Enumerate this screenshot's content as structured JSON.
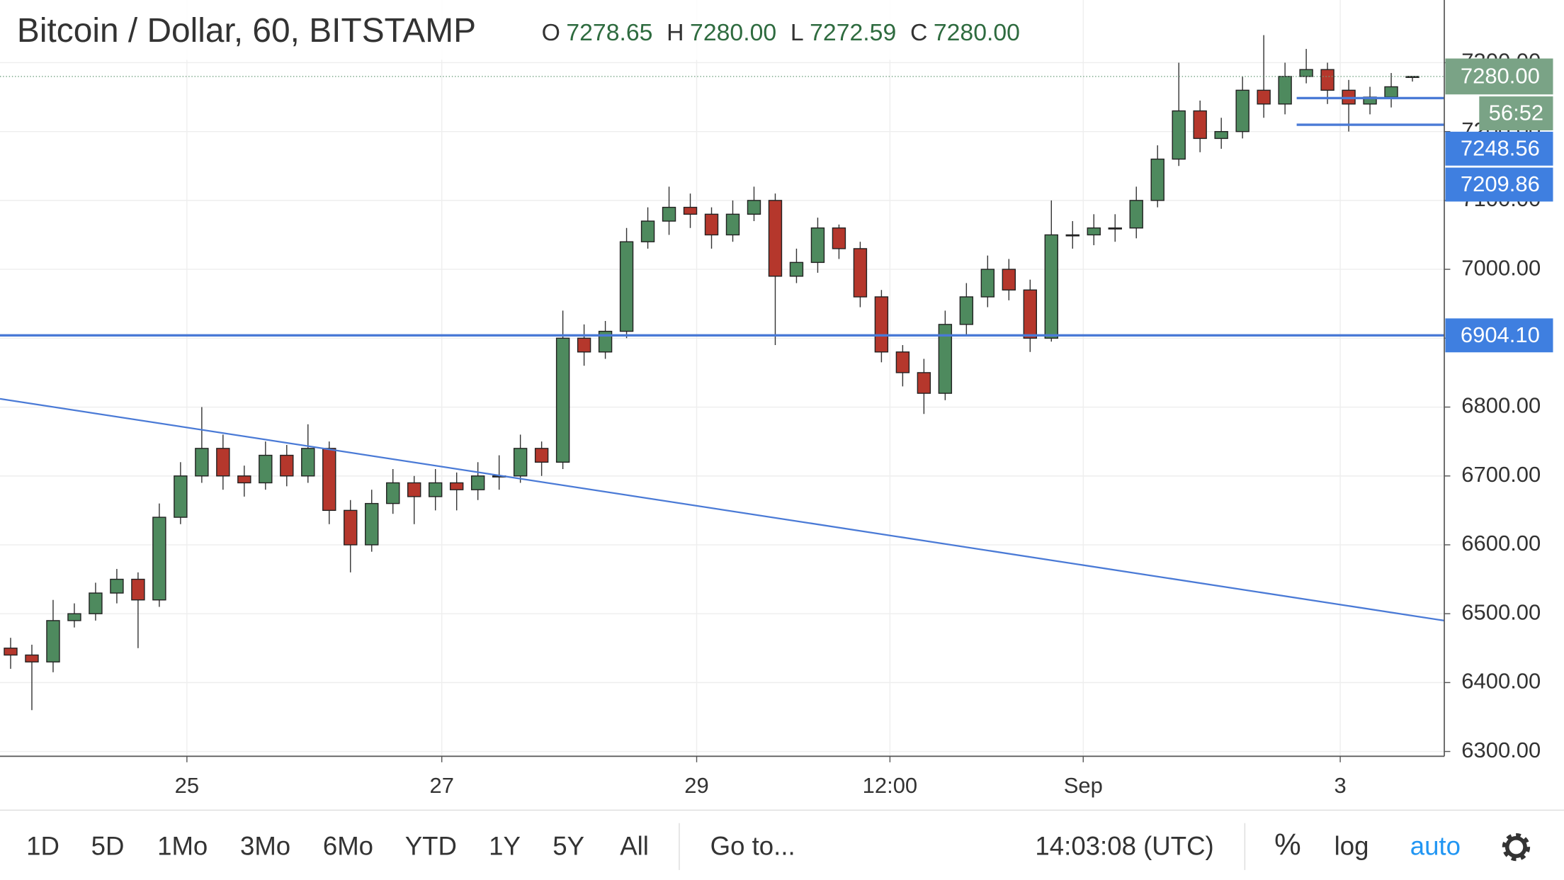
{
  "chart_data": {
    "type": "candlestick",
    "title": "Bitcoin / Dollar, 60, BITSTAMP",
    "legend_values": {
      "names": [
        "O",
        "H",
        "L",
        "C"
      ],
      "values": [
        7278.65,
        7280,
        7272.59,
        7280
      ],
      "value_labels": [
        "7278.65",
        "7280.00",
        "7272.59",
        "7280.00"
      ]
    },
    "open": [
      6450,
      6440,
      6430,
      6490,
      6500,
      6530,
      6550,
      6520,
      6640,
      6700,
      6740,
      6700,
      6690,
      6730,
      6700,
      6740,
      6650,
      6600,
      6660,
      6690,
      6670,
      6690,
      6680,
      6700,
      6700,
      6740,
      6720,
      6900,
      6880,
      6910,
      7040,
      7070,
      7090,
      7080,
      7050,
      7080,
      7100,
      6990,
      7010,
      7060,
      7030,
      6960,
      6880,
      6850,
      6820,
      6920,
      6960,
      7000,
      6970,
      6900,
      7050,
      7050,
      7060,
      7060,
      7100,
      7160,
      7230,
      7190,
      7200,
      7260,
      7240,
      7280,
      7290,
      7260,
      7240,
      7250,
      7278.65
    ],
    "high": [
      6465,
      6455,
      6520,
      6515,
      6545,
      6565,
      6560,
      6660,
      6720,
      6800,
      6760,
      6715,
      6750,
      6745,
      6775,
      6750,
      6665,
      6680,
      6710,
      6700,
      6710,
      6705,
      6720,
      6730,
      6760,
      6750,
      6940,
      6920,
      6925,
      7060,
      7090,
      7120,
      7110,
      7090,
      7100,
      7120,
      7110,
      7030,
      7075,
      7065,
      7040,
      6970,
      6890,
      6870,
      6940,
      6980,
      7020,
      7015,
      6985,
      7100,
      7070,
      7080,
      7080,
      7120,
      7180,
      7300,
      7245,
      7220,
      7280,
      7340,
      7300,
      7320,
      7300,
      7275,
      7265,
      7285,
      7280
    ],
    "low": [
      6420,
      6360,
      6415,
      6480,
      6490,
      6515,
      6450,
      6510,
      6630,
      6690,
      6680,
      6670,
      6680,
      6685,
      6690,
      6630,
      6560,
      6590,
      6645,
      6630,
      6650,
      6650,
      6665,
      6680,
      6690,
      6700,
      6710,
      6860,
      6870,
      6900,
      7030,
      7050,
      7060,
      7030,
      7040,
      7070,
      6890,
      6980,
      6995,
      7015,
      6945,
      6865,
      6830,
      6790,
      6810,
      6905,
      6945,
      6955,
      6880,
      6895,
      7030,
      7035,
      7040,
      7045,
      7090,
      7150,
      7170,
      7175,
      7190,
      7220,
      7225,
      7270,
      7240,
      7200,
      7225,
      7235,
      7272.59
    ],
    "close": [
      6440,
      6430,
      6490,
      6500,
      6530,
      6550,
      6520,
      6640,
      6700,
      6740,
      6700,
      6690,
      6730,
      6700,
      6740,
      6650,
      6600,
      6660,
      6690,
      6670,
      6690,
      6680,
      6700,
      6700,
      6740,
      6720,
      6900,
      6880,
      6910,
      7040,
      7070,
      7090,
      7080,
      7050,
      7080,
      7100,
      6990,
      7010,
      7060,
      7030,
      6960,
      6880,
      6850,
      6820,
      6920,
      6960,
      7000,
      6970,
      6900,
      7050,
      7050,
      7060,
      7060,
      7100,
      7160,
      7230,
      7190,
      7200,
      7260,
      7240,
      7280,
      7290,
      7260,
      7240,
      7250,
      7265,
      7280
    ],
    "up_color": "#4e8a5e",
    "down_color": "#b5372c",
    "xlim": [
      0,
      68
    ],
    "xticks": [
      {
        "value": 8.8,
        "label": "25"
      },
      {
        "value": 20.8,
        "label": "27"
      },
      {
        "value": 32.8,
        "label": "29"
      },
      {
        "value": 41.9,
        "label": "12:00"
      },
      {
        "value": 51,
        "label": "Sep"
      },
      {
        "value": 63.1,
        "label": "3"
      }
    ],
    "ylim": [
      6293,
      7391
    ],
    "yticks": [
      {
        "value": 6300,
        "label": "6300.00"
      },
      {
        "value": 6400,
        "label": "6400.00"
      },
      {
        "value": 6500,
        "label": "6500.00"
      },
      {
        "value": 6600,
        "label": "6600.00"
      },
      {
        "value": 6700,
        "label": "6700.00"
      },
      {
        "value": 6800,
        "label": "6800.00"
      },
      {
        "value": 6900,
        "label": "6900.00"
      },
      {
        "value": 7000,
        "label": "7000.00"
      },
      {
        "value": 7100,
        "label": "7100.00"
      },
      {
        "value": 7200,
        "label": "7200.00"
      },
      {
        "value": 7300,
        "label": "7300.00"
      }
    ],
    "grid": true,
    "hlines": [
      {
        "value": 6904.1,
        "label": "6904.10"
      },
      {
        "value": 7248.56,
        "label": "7248.56"
      },
      {
        "value": 7209.86,
        "label": "7209.86"
      }
    ],
    "trendline": {
      "x": [
        0,
        68
      ],
      "y": [
        6812,
        6490
      ]
    },
    "last_price": {
      "value": 7280,
      "label": "7280.00",
      "countdown": "56:52"
    }
  },
  "toolbar": {
    "ranges": [
      "1D",
      "5D",
      "1Mo",
      "3Mo",
      "6Mo",
      "YTD",
      "1Y",
      "5Y",
      "All"
    ],
    "goto": "Go to...",
    "clock": "14:03:08 (UTC)",
    "percent": "%",
    "log": "log",
    "auto": "auto"
  }
}
